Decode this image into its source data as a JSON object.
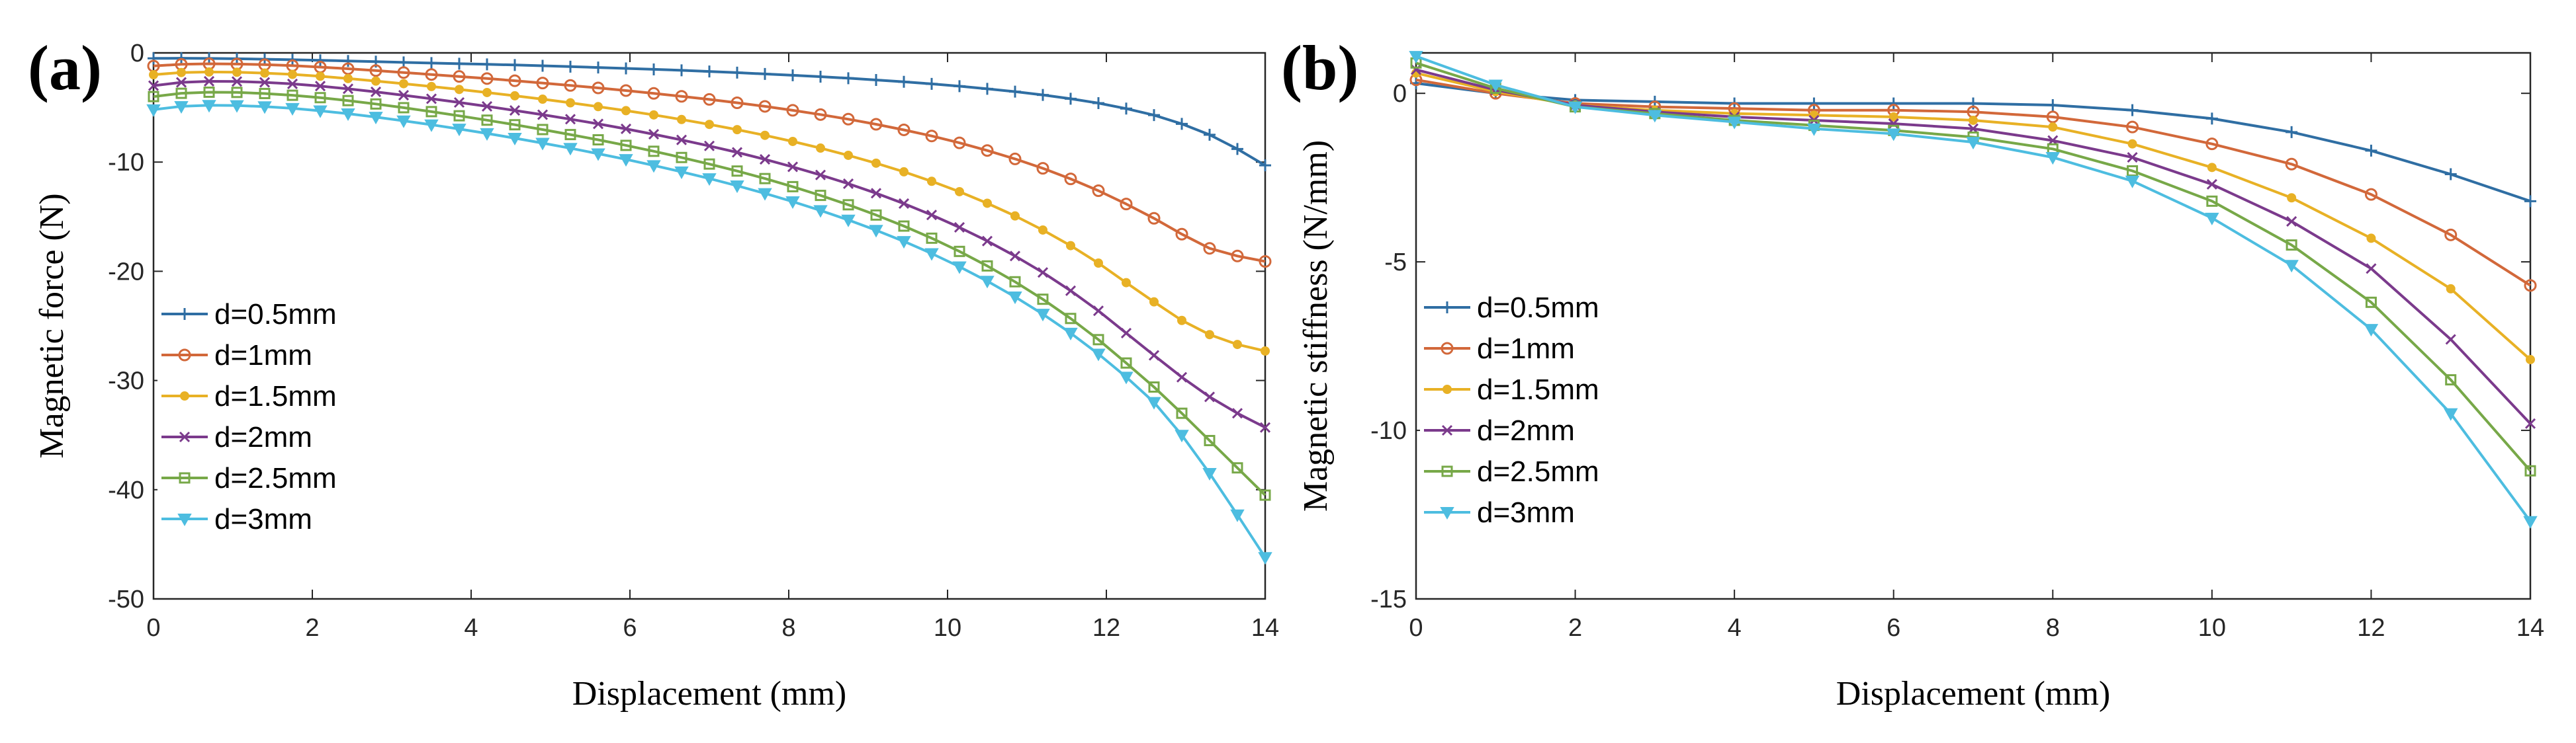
{
  "panels": [
    {
      "label": "(a)"
    },
    {
      "label": "(b)"
    }
  ],
  "chart_data": [
    {
      "type": "line",
      "title": "",
      "xlabel": "Displacement (mm)",
      "ylabel": "Magnetic force (N)",
      "xlim": [
        0,
        14
      ],
      "ylim": [
        -50,
        0
      ],
      "xticks": [
        0,
        2,
        4,
        6,
        8,
        10,
        12,
        14
      ],
      "yticks": [
        -50,
        -40,
        -30,
        -20,
        -10,
        0
      ],
      "legend_position": "left",
      "x": [
        0,
        0.35,
        0.7,
        1.05,
        1.4,
        1.75,
        2.1,
        2.45,
        2.8,
        3.15,
        3.5,
        3.85,
        4.2,
        4.55,
        4.9,
        5.25,
        5.6,
        5.95,
        6.3,
        6.65,
        7,
        7.35,
        7.7,
        8.05,
        8.4,
        8.75,
        9.1,
        9.45,
        9.8,
        10.15,
        10.5,
        10.85,
        11.2,
        11.55,
        11.9,
        12.25,
        12.6,
        12.95,
        13.3,
        13.65,
        14
      ],
      "series": [
        {
          "name": "d=0.5mm",
          "color": "#2f6ea3",
          "marker": "plus",
          "values": [
            -0.5,
            -0.49,
            -0.51,
            -0.54,
            -0.58,
            -0.63,
            -0.68,
            -0.74,
            -0.8,
            -0.87,
            -0.93,
            -0.99,
            -1.05,
            -1.11,
            -1.18,
            -1.26,
            -1.34,
            -1.42,
            -1.51,
            -1.6,
            -1.7,
            -1.81,
            -1.93,
            -2.05,
            -2.18,
            -2.32,
            -2.48,
            -2.65,
            -2.84,
            -3.05,
            -3.29,
            -3.55,
            -3.85,
            -4.2,
            -4.6,
            -5.1,
            -5.7,
            -6.5,
            -7.5,
            -8.8,
            -10.3
          ]
        },
        {
          "name": "d=1mm",
          "color": "#d2683a",
          "marker": "circle",
          "values": [
            -1.2,
            -1.05,
            -1.0,
            -1.02,
            -1.08,
            -1.17,
            -1.3,
            -1.45,
            -1.62,
            -1.8,
            -1.98,
            -2.16,
            -2.35,
            -2.55,
            -2.76,
            -2.98,
            -3.21,
            -3.45,
            -3.71,
            -3.98,
            -4.26,
            -4.57,
            -4.9,
            -5.26,
            -5.65,
            -6.07,
            -6.54,
            -7.05,
            -7.61,
            -8.24,
            -8.94,
            -9.71,
            -10.57,
            -11.54,
            -12.62,
            -13.84,
            -15.15,
            -16.6,
            -17.9,
            -18.6,
            -19.1
          ]
        },
        {
          "name": "d=1.5mm",
          "color": "#e8b125",
          "marker": "dot",
          "values": [
            -2.0,
            -1.8,
            -1.75,
            -1.77,
            -1.85,
            -1.97,
            -2.14,
            -2.35,
            -2.58,
            -2.82,
            -3.08,
            -3.35,
            -3.63,
            -3.93,
            -4.24,
            -4.57,
            -4.92,
            -5.29,
            -5.68,
            -6.1,
            -6.55,
            -7.03,
            -7.55,
            -8.11,
            -8.72,
            -9.38,
            -10.1,
            -10.89,
            -11.76,
            -12.71,
            -13.77,
            -14.93,
            -16.22,
            -17.65,
            -19.25,
            -21.04,
            -22.8,
            -24.5,
            -25.8,
            -26.7,
            -27.3
          ]
        },
        {
          "name": "d=2mm",
          "color": "#7b3a8c",
          "marker": "x",
          "values": [
            -3.0,
            -2.7,
            -2.6,
            -2.62,
            -2.7,
            -2.84,
            -3.04,
            -3.29,
            -3.57,
            -3.88,
            -4.2,
            -4.54,
            -4.9,
            -5.27,
            -5.66,
            -6.07,
            -6.5,
            -6.96,
            -7.45,
            -7.97,
            -8.52,
            -9.11,
            -9.75,
            -10.44,
            -11.18,
            -11.98,
            -12.85,
            -13.8,
            -14.84,
            -15.98,
            -17.23,
            -18.6,
            -20.11,
            -21.78,
            -23.62,
            -25.66,
            -27.7,
            -29.7,
            -31.5,
            -33.0,
            -34.3
          ]
        },
        {
          "name": "d=2.5mm",
          "color": "#77a848",
          "marker": "square",
          "values": [
            -4.0,
            -3.7,
            -3.6,
            -3.62,
            -3.72,
            -3.88,
            -4.1,
            -4.37,
            -4.68,
            -5.02,
            -5.38,
            -5.76,
            -6.16,
            -6.58,
            -7.02,
            -7.48,
            -7.96,
            -8.47,
            -9.01,
            -9.58,
            -10.18,
            -10.82,
            -11.51,
            -12.25,
            -13.05,
            -13.91,
            -14.85,
            -15.86,
            -16.97,
            -18.18,
            -19.51,
            -20.96,
            -22.56,
            -24.32,
            -26.26,
            -28.4,
            -30.6,
            -33.0,
            -35.5,
            -38.0,
            -40.5
          ]
        },
        {
          "name": "d=3mm",
          "color": "#4dbde0",
          "marker": "triangle-down",
          "values": [
            -5.2,
            -4.9,
            -4.8,
            -4.82,
            -4.92,
            -5.08,
            -5.3,
            -5.57,
            -5.88,
            -6.22,
            -6.58,
            -6.97,
            -7.38,
            -7.81,
            -8.26,
            -8.73,
            -9.23,
            -9.75,
            -10.31,
            -10.89,
            -11.51,
            -12.17,
            -12.87,
            -13.62,
            -14.43,
            -15.3,
            -16.24,
            -17.26,
            -18.37,
            -19.58,
            -20.9,
            -22.34,
            -23.92,
            -25.66,
            -27.57,
            -29.68,
            -32.0,
            -35.0,
            -38.5,
            -42.3,
            -46.2
          ]
        }
      ]
    },
    {
      "type": "line",
      "title": "",
      "xlabel": "Displacement (mm)",
      "ylabel": "Magnetic stiffness (N/mm)",
      "xlim": [
        0,
        14
      ],
      "ylim": [
        -15,
        1.2
      ],
      "xticks": [
        0,
        2,
        4,
        6,
        8,
        10,
        12,
        14
      ],
      "yticks": [
        -15,
        -10,
        -5,
        0
      ],
      "legend_position": "left",
      "x": [
        0,
        1,
        2,
        3,
        4,
        5,
        6,
        7,
        8,
        9,
        10,
        11,
        12,
        13,
        14
      ],
      "series": [
        {
          "name": "d=0.5mm",
          "color": "#2f6ea3",
          "marker": "plus",
          "values": [
            0.3,
            0.0,
            -0.2,
            -0.25,
            -0.3,
            -0.3,
            -0.3,
            -0.3,
            -0.35,
            -0.5,
            -0.75,
            -1.15,
            -1.7,
            -2.4,
            -3.2
          ]
        },
        {
          "name": "d=1mm",
          "color": "#d2683a",
          "marker": "circle",
          "values": [
            0.4,
            0.0,
            -0.3,
            -0.4,
            -0.45,
            -0.5,
            -0.5,
            -0.55,
            -0.7,
            -1.0,
            -1.5,
            -2.1,
            -3.0,
            -4.2,
            -5.7
          ]
        },
        {
          "name": "d=1.5mm",
          "color": "#e8b125",
          "marker": "dot",
          "values": [
            0.6,
            0.05,
            -0.35,
            -0.5,
            -0.6,
            -0.65,
            -0.7,
            -0.8,
            -1.0,
            -1.5,
            -2.2,
            -3.1,
            -4.3,
            -5.8,
            -7.9
          ]
        },
        {
          "name": "d=2mm",
          "color": "#7b3a8c",
          "marker": "x",
          "values": [
            0.7,
            0.1,
            -0.35,
            -0.55,
            -0.7,
            -0.8,
            -0.9,
            -1.05,
            -1.4,
            -1.9,
            -2.7,
            -3.8,
            -5.2,
            -7.3,
            -9.8
          ]
        },
        {
          "name": "d=2.5mm",
          "color": "#77a848",
          "marker": "square",
          "values": [
            0.9,
            0.15,
            -0.4,
            -0.6,
            -0.8,
            -0.95,
            -1.1,
            -1.3,
            -1.65,
            -2.3,
            -3.2,
            -4.5,
            -6.2,
            -8.5,
            -11.2
          ]
        },
        {
          "name": "d=3mm",
          "color": "#4dbde0",
          "marker": "triangle-down",
          "values": [
            1.1,
            0.25,
            -0.4,
            -0.65,
            -0.85,
            -1.05,
            -1.2,
            -1.45,
            -1.9,
            -2.6,
            -3.7,
            -5.1,
            -7.0,
            -9.5,
            -12.7
          ]
        }
      ]
    }
  ]
}
